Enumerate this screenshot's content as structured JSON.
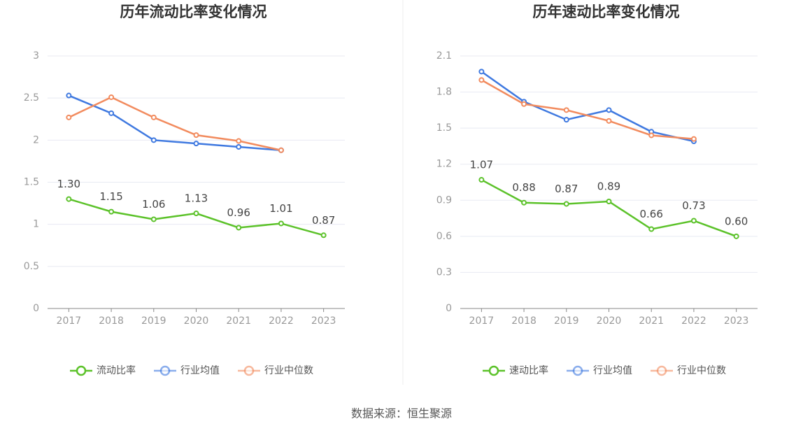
{
  "chart_data": [
    {
      "type": "line",
      "title": "历年流动比率变化情况",
      "categories": [
        "2017",
        "2018",
        "2019",
        "2020",
        "2021",
        "2022",
        "2023"
      ],
      "series": [
        {
          "name": "流动比率",
          "color": "#5cc22a",
          "values": [
            1.3,
            1.15,
            1.06,
            1.13,
            0.96,
            1.01,
            0.87
          ],
          "value_labels": [
            "1.30",
            "1.15",
            "1.06",
            "1.13",
            "0.96",
            "1.01",
            "0.87"
          ]
        },
        {
          "name": "行业均值",
          "color": "#3f79e0",
          "values": [
            2.53,
            2.32,
            2.0,
            1.96,
            1.92,
            1.88,
            null
          ]
        },
        {
          "name": "行业中位数",
          "color": "#f28b5e",
          "values": [
            2.27,
            2.51,
            2.27,
            2.06,
            1.99,
            1.88,
            null
          ]
        }
      ],
      "ylim": [
        0,
        3
      ],
      "yticks": [
        0,
        0.5,
        1,
        1.5,
        2,
        2.5,
        3
      ],
      "grid": true,
      "legend": "bottom"
    },
    {
      "type": "line",
      "title": "历年速动比率变化情况",
      "categories": [
        "2017",
        "2018",
        "2019",
        "2020",
        "2021",
        "2022",
        "2023"
      ],
      "series": [
        {
          "name": "速动比率",
          "color": "#5cc22a",
          "values": [
            1.07,
            0.88,
            0.87,
            0.89,
            0.66,
            0.73,
            0.6
          ],
          "value_labels": [
            "1.07",
            "0.88",
            "0.87",
            "0.89",
            "0.66",
            "0.73",
            "0.60"
          ]
        },
        {
          "name": "行业均值",
          "color": "#3f79e0",
          "values": [
            1.97,
            1.72,
            1.57,
            1.65,
            1.47,
            1.39,
            null
          ]
        },
        {
          "name": "行业中位数",
          "color": "#f28b5e",
          "values": [
            1.9,
            1.7,
            1.65,
            1.56,
            1.44,
            1.41,
            null
          ]
        }
      ],
      "ylim": [
        0,
        2.1
      ],
      "yticks": [
        0,
        0.3,
        0.6,
        0.9,
        1.2,
        1.5,
        1.8,
        2.1
      ],
      "grid": true,
      "legend": "bottom"
    }
  ],
  "source": "数据来源：恒生聚源"
}
